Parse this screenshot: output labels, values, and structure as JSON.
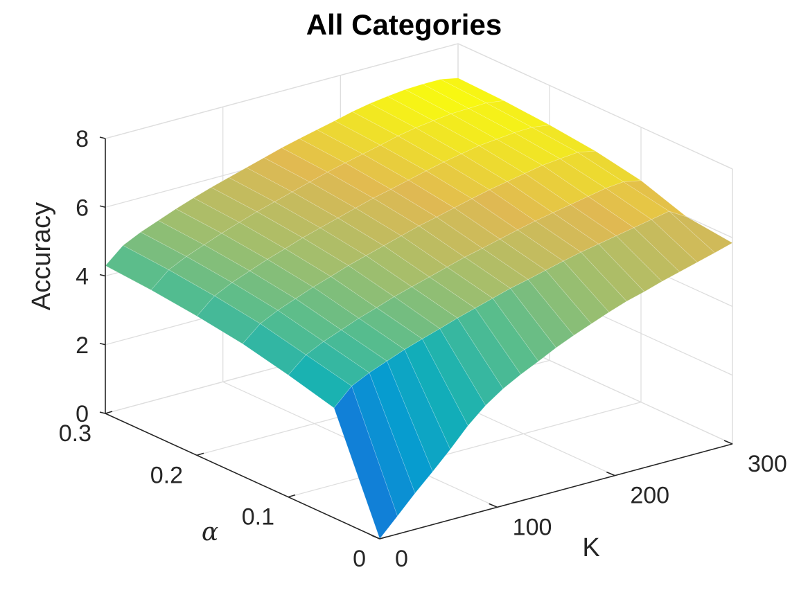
{
  "chart_data": {
    "type": "surface",
    "title": "All Categories",
    "xlabel": "K",
    "ylabel": "α",
    "zlabel": "Accuracy",
    "xlim": [
      0,
      300
    ],
    "ylim": [
      0,
      0.3
    ],
    "zlim": [
      0,
      8
    ],
    "x_ticks": [
      "0",
      "100",
      "200",
      "300"
    ],
    "y_ticks": [
      "0",
      "0.1",
      "0.2",
      "0.3"
    ],
    "z_ticks": [
      "0",
      "2",
      "4",
      "6",
      "8"
    ],
    "grid": true,
    "colormap": "parula",
    "k_values": [
      0,
      15,
      30,
      45,
      60,
      75,
      90,
      105,
      120,
      135,
      150,
      165,
      180,
      195,
      210,
      225,
      240,
      255,
      270,
      285,
      300
    ],
    "alpha_values": [
      0.3,
      0.25,
      0.2,
      0.15,
      0.1,
      0.05,
      0.0
    ],
    "accuracy_at_alpha_0": [
      0,
      0.52,
      1.05,
      1.54,
      2.05,
      2.6,
      3.05,
      3.4,
      3.68,
      3.92,
      4.18,
      4.4,
      4.6,
      4.8,
      4.98,
      5.12,
      5.28,
      5.42,
      5.56,
      5.7,
      5.85
    ],
    "accuracy_at_alpha_0.05": [
      3.2,
      3.7,
      3.95,
      4.15,
      4.35,
      4.52,
      4.68,
      4.85,
      5.0,
      5.15,
      5.3,
      5.42,
      5.55,
      5.68,
      5.8,
      5.9,
      6.0,
      6.1,
      6.2,
      6.3,
      6.0
    ],
    "accuracy_at_alpha_0.1": [
      3.55,
      4.0,
      4.25,
      4.45,
      4.65,
      4.82,
      5.0,
      5.15,
      5.3,
      5.45,
      5.6,
      5.72,
      5.85,
      5.98,
      6.1,
      6.2,
      6.3,
      6.4,
      6.5,
      6.55,
      6.45
    ],
    "accuracy_at_alpha_0.15": [
      3.85,
      4.3,
      4.55,
      4.75,
      4.95,
      5.12,
      5.3,
      5.45,
      5.6,
      5.75,
      5.9,
      6.02,
      6.15,
      6.28,
      6.4,
      6.5,
      6.6,
      6.7,
      6.75,
      6.8,
      6.7
    ],
    "accuracy_at_alpha_0.2": [
      4.05,
      4.5,
      4.75,
      4.95,
      5.15,
      5.32,
      5.5,
      5.65,
      5.8,
      5.95,
      6.1,
      6.22,
      6.35,
      6.48,
      6.6,
      6.7,
      6.8,
      6.85,
      6.9,
      6.92,
      6.85
    ],
    "accuracy_at_alpha_0.25": [
      4.2,
      4.65,
      4.9,
      5.1,
      5.3,
      5.48,
      5.65,
      5.8,
      5.95,
      6.1,
      6.25,
      6.38,
      6.5,
      6.62,
      6.75,
      6.85,
      6.92,
      6.98,
      7.0,
      7.02,
      6.95
    ],
    "accuracy_at_alpha_0.3": [
      4.3,
      4.75,
      5.0,
      5.2,
      5.4,
      5.58,
      5.75,
      5.9,
      6.05,
      6.2,
      6.35,
      6.48,
      6.6,
      6.72,
      6.85,
      6.95,
      7.02,
      7.08,
      7.1,
      7.1,
      7.0
    ]
  }
}
